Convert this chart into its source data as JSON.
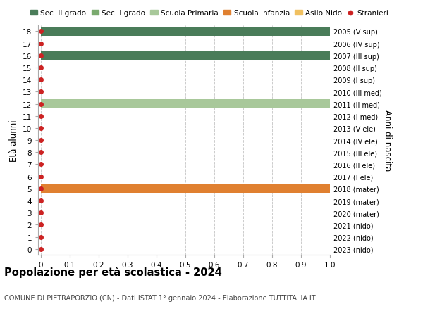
{
  "ages": [
    18,
    17,
    16,
    15,
    14,
    13,
    12,
    11,
    10,
    9,
    8,
    7,
    6,
    5,
    4,
    3,
    2,
    1,
    0
  ],
  "right_labels": [
    "2005 (V sup)",
    "2006 (IV sup)",
    "2007 (III sup)",
    "2008 (II sup)",
    "2009 (I sup)",
    "2010 (III med)",
    "2011 (II med)",
    "2012 (I med)",
    "2013 (V ele)",
    "2014 (IV ele)",
    "2015 (III ele)",
    "2016 (II ele)",
    "2017 (I ele)",
    "2018 (mater)",
    "2019 (mater)",
    "2020 (mater)",
    "2021 (nido)",
    "2022 (nido)",
    "2023 (nido)"
  ],
  "bars": [
    {
      "age": 18,
      "value": 1.0,
      "color": "#4a7c59"
    },
    {
      "age": 16,
      "value": 1.0,
      "color": "#4a7c59"
    },
    {
      "age": 12,
      "value": 1.0,
      "color": "#a8c89a"
    },
    {
      "age": 5,
      "value": 1.0,
      "color": "#e08030"
    }
  ],
  "dots": [
    18,
    17,
    16,
    15,
    14,
    13,
    12,
    11,
    10,
    9,
    8,
    7,
    6,
    5,
    4,
    3,
    2,
    1,
    0
  ],
  "dot_color": "#cc2222",
  "dot_size": 4,
  "colors": {
    "sec2": "#4a7c59",
    "sec1": "#7aaa6e",
    "primaria": "#a8c89a",
    "infanzia": "#e08030",
    "nido": "#f0c060",
    "stranieri": "#cc2222"
  },
  "legend_labels": [
    "Sec. II grado",
    "Sec. I grado",
    "Scuola Primaria",
    "Scuola Infanzia",
    "Asilo Nido",
    "Stranieri"
  ],
  "ylabel_left": "Età alunni",
  "ylabel_right": "Anni di nascita",
  "title": "Popolazione per età scolastica - 2024",
  "subtitle": "COMUNE DI PIETRAPORZIO (CN) - Dati ISTAT 1° gennaio 2024 - Elaborazione TUTTITALIA.IT",
  "xlim": [
    -0.01,
    1.0
  ],
  "ylim": [
    -0.5,
    18.5
  ],
  "xticks": [
    0,
    0.1,
    0.2,
    0.3,
    0.4,
    0.5,
    0.6,
    0.7,
    0.8,
    0.9,
    1.0
  ],
  "background_color": "#ffffff",
  "grid_color": "#cccccc",
  "bar_height": 0.75
}
